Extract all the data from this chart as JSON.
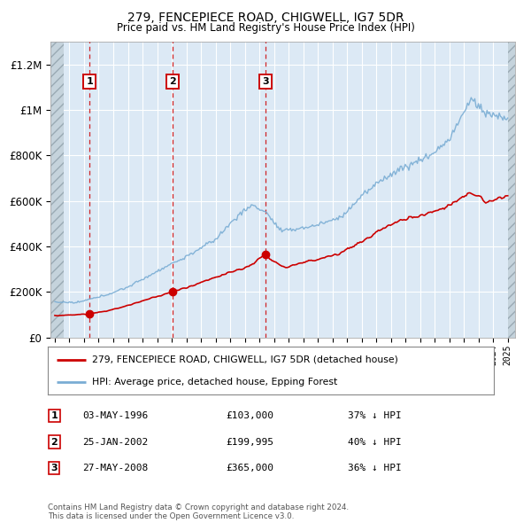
{
  "title": "279, FENCEPIECE ROAD, CHIGWELL, IG7 5DR",
  "subtitle": "Price paid vs. HM Land Registry's House Price Index (HPI)",
  "ylabel_ticks": [
    "£0",
    "£200K",
    "£400K",
    "£600K",
    "£800K",
    "£1M",
    "£1.2M"
  ],
  "ytick_values": [
    0,
    200000,
    400000,
    600000,
    800000,
    1000000,
    1200000
  ],
  "ylim_max": 1300000,
  "xlim_start": 1993.7,
  "xlim_end": 2025.5,
  "hatch_end": 1994.6,
  "bg_color": "#dce9f5",
  "grid_color": "#ffffff",
  "sale_points": [
    {
      "year": 1996.37,
      "price": 103000,
      "label": "1"
    },
    {
      "year": 2002.07,
      "price": 199995,
      "label": "2"
    },
    {
      "year": 2008.4,
      "price": 365000,
      "label": "3"
    }
  ],
  "sale_dates": [
    "03-MAY-1996",
    "25-JAN-2002",
    "27-MAY-2008"
  ],
  "sale_prices_str": [
    "£103,000",
    "£199,995",
    "£365,000"
  ],
  "sale_hpi_pct": [
    "37% ↓ HPI",
    "40% ↓ HPI",
    "36% ↓ HPI"
  ],
  "legend_line1": "279, FENCEPIECE ROAD, CHIGWELL, IG7 5DR (detached house)",
  "legend_line2": "HPI: Average price, detached house, Epping Forest",
  "footer": "Contains HM Land Registry data © Crown copyright and database right 2024.\nThis data is licensed under the Open Government Licence v3.0.",
  "red_line_color": "#cc0000",
  "blue_line_color": "#7aadd4",
  "marker_color": "#cc0000",
  "vline_color": "#cc0000"
}
